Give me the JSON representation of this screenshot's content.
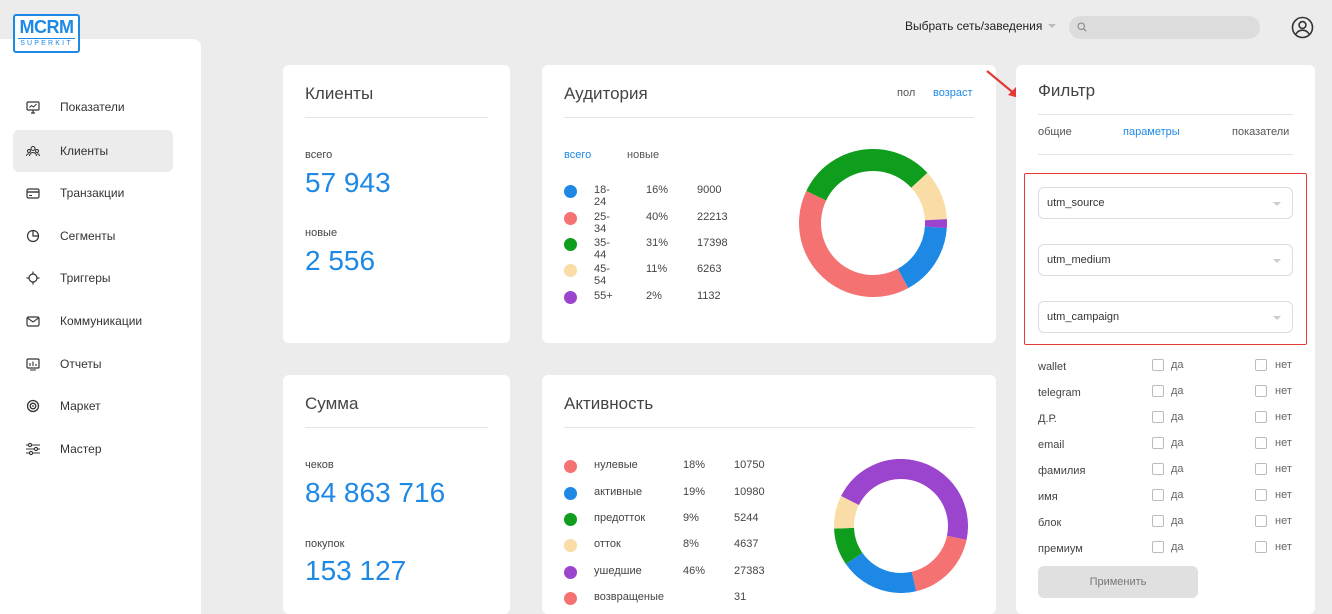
{
  "logo": {
    "line1": "MCRM",
    "line2": "SUPERKIT"
  },
  "header": {
    "network_select": "Выбрать сеть/заведения",
    "search_placeholder": ""
  },
  "sidebar": {
    "items": [
      {
        "label": "Показатели",
        "icon": "monitor-icon"
      },
      {
        "label": "Клиенты",
        "icon": "users-icon",
        "active": true
      },
      {
        "label": "Транзакции",
        "icon": "card-icon"
      },
      {
        "label": "Сегменты",
        "icon": "pie-icon"
      },
      {
        "label": "Триггеры",
        "icon": "crosshair-icon"
      },
      {
        "label": "Коммуникации",
        "icon": "mail-icon"
      },
      {
        "label": "Отчеты",
        "icon": "report-icon"
      },
      {
        "label": "Маркет",
        "icon": "target-icon"
      },
      {
        "label": "Мастер",
        "icon": "sliders-icon"
      }
    ]
  },
  "clients": {
    "title": "Клиенты",
    "total_label": "всего",
    "total_value": "57 943",
    "new_label": "новые",
    "new_value": "2 556"
  },
  "sum": {
    "title": "Сумма",
    "checks_label": "чеков",
    "checks_value": "84 863 716",
    "purchases_label": "покупок",
    "purchases_value": "153 127"
  },
  "audience": {
    "title": "Аудитория",
    "tab_gender": "пол",
    "tab_age": "возраст",
    "sub_all": "всего",
    "sub_new": "новые",
    "rows": [
      {
        "name": "18-24",
        "pct": "16%",
        "count": "9000",
        "color": "#1e88e5"
      },
      {
        "name": "25-34",
        "pct": "40%",
        "count": "22213",
        "color": "#f47272"
      },
      {
        "name": "35-44",
        "pct": "31%",
        "count": "17398",
        "color": "#0f9d1d"
      },
      {
        "name": "45-54",
        "pct": "11%",
        "count": "6263",
        "color": "#f9dca6"
      },
      {
        "name": "55+",
        "pct": "2%",
        "count": "1132",
        "color": "#9b45cf"
      }
    ],
    "donut": [
      {
        "value": 16,
        "color": "#1e88e5"
      },
      {
        "value": 40,
        "color": "#f47272"
      },
      {
        "value": 31,
        "color": "#0f9d1d"
      },
      {
        "value": 11,
        "color": "#f9dca6"
      },
      {
        "value": 2,
        "color": "#9b45cf"
      }
    ]
  },
  "activity": {
    "title": "Активность",
    "rows": [
      {
        "name": "нулевые",
        "pct": "18%",
        "count": "10750",
        "color": "#f47272"
      },
      {
        "name": "активные",
        "pct": "19%",
        "count": "10980",
        "color": "#1e88e5"
      },
      {
        "name": "предотток",
        "pct": "9%",
        "count": "5244",
        "color": "#0f9d1d"
      },
      {
        "name": "отток",
        "pct": "8%",
        "count": "4637",
        "color": "#f9dca6"
      },
      {
        "name": "ушедшие",
        "pct": "46%",
        "count": "27383",
        "color": "#9b45cf"
      },
      {
        "name": "возвращеные",
        "pct": "",
        "count": "31",
        "color": "#f47272"
      }
    ],
    "donut": [
      {
        "value": 18,
        "color": "#f47272"
      },
      {
        "value": 19,
        "color": "#1e88e5"
      },
      {
        "value": 9,
        "color": "#0f9d1d"
      },
      {
        "value": 8,
        "color": "#f9dca6"
      },
      {
        "value": 46,
        "color": "#9b45cf"
      }
    ]
  },
  "filter": {
    "title": "Фильтр",
    "tab_general": "общие",
    "tab_params": "параметры",
    "tab_indicators": "показатели",
    "selects": [
      "utm_source",
      "utm_medium",
      "utm_campaign"
    ],
    "yes_label": "да",
    "no_label": "нет",
    "options": [
      "wallet",
      "telegram",
      "Д.Р.",
      "email",
      "фамилия",
      "имя",
      "блок",
      "премиум"
    ],
    "apply_label": "Применить"
  },
  "colors": {
    "accent": "#1e88e5",
    "highlight": "#e53935"
  }
}
